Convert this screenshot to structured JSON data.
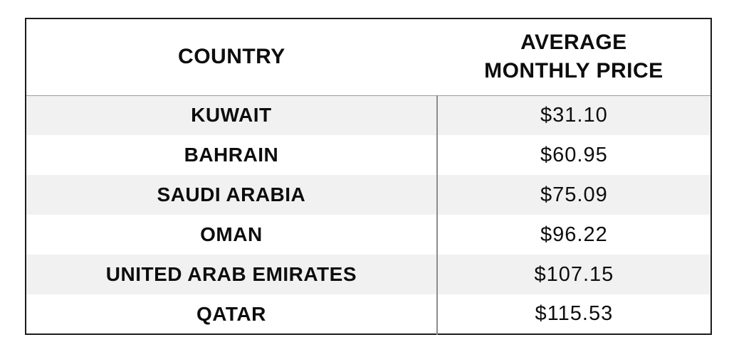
{
  "table": {
    "columns": [
      {
        "label": "COUNTRY"
      },
      {
        "label": "AVERAGE MONTHLY PRICE"
      }
    ],
    "rows": [
      {
        "country": "KUWAIT",
        "price": "$31.10"
      },
      {
        "country": "BAHRAIN",
        "price": "$60.95"
      },
      {
        "country": "SAUDI ARABIA",
        "price": "$75.09"
      },
      {
        "country": "OMAN",
        "price": "$96.22"
      },
      {
        "country": "UNITED ARAB EMIRATES",
        "price": "$107.15"
      },
      {
        "country": "QATAR",
        "price": "$115.53"
      }
    ]
  },
  "colors": {
    "stripe": "#f1f1f1",
    "outer_border": "#1c1c1c",
    "column_divider": "#8c8c8c",
    "header_rule": "#9e9e9e",
    "text": "#0d0d0d"
  },
  "chart_data": {
    "type": "table",
    "title": "",
    "columns": [
      "COUNTRY",
      "AVERAGE MONTHLY PRICE"
    ],
    "categories": [
      "KUWAIT",
      "BAHRAIN",
      "SAUDI ARABIA",
      "OMAN",
      "UNITED ARAB EMIRATES",
      "QATAR"
    ],
    "values": [
      31.1,
      60.95,
      75.09,
      96.22,
      107.15,
      115.53
    ],
    "unit": "USD",
    "layout": {
      "striped_rows": "odd",
      "legend": "none",
      "grid": "off"
    }
  }
}
